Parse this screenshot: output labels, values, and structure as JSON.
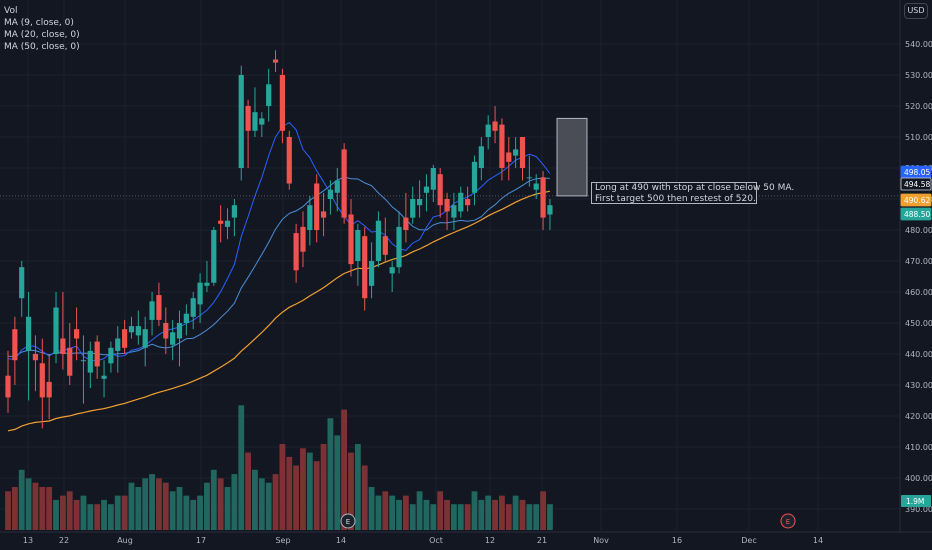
{
  "legend": {
    "vol": "Vol",
    "ma9": "MA (9, close, 0)",
    "ma20": "MA (20, close, 0)",
    "ma50": "MA (50, close, 0)"
  },
  "unit_label": "USD",
  "annotation": {
    "line1": "Long at 490 with stop at close below 50 MA.",
    "line2": "First target 500 then restest of 520."
  },
  "events": [
    {
      "label": "E",
      "date": "Sep 14"
    },
    {
      "label": "E",
      "date": "Dec 7"
    }
  ],
  "colors": {
    "background": "#131722",
    "up": "#26a69a",
    "down": "#ef5350",
    "vol_up": "#22675f",
    "vol_down": "#7c3234",
    "ma9": "#2962ff",
    "ma20": "#4a90d9",
    "ma50": "#f0a030",
    "grid": "#1e222d",
    "text": "#b2b5be"
  },
  "chart_data": {
    "type": "candlestick",
    "y_ticks": [
      390,
      400,
      410,
      420,
      430,
      440,
      450,
      460,
      470,
      480,
      490,
      500,
      510,
      520,
      530,
      540
    ],
    "ylim": [
      385,
      548
    ],
    "x_tick_labels": [
      "13",
      "22",
      "Aug",
      "17",
      "Sep",
      "14",
      "Oct",
      "12",
      "21",
      "Nov",
      "16",
      "Dec",
      "14"
    ],
    "price_tags": [
      {
        "label": "498.05",
        "value": 498.05,
        "color": "#2962ff"
      },
      {
        "label": "494.58",
        "value": 494.58,
        "color": "#131722"
      },
      {
        "label": "490.62",
        "value": 490.62,
        "color": "#f0a030"
      },
      {
        "label": "488.50",
        "value": 488.5,
        "color": "#26a69a"
      }
    ],
    "volume_tag": "1.9M",
    "target_box": {
      "low": 491,
      "high": 516
    },
    "candles": [
      {
        "o": 433,
        "h": 441,
        "l": 421,
        "c": 426,
        "v": 9
      },
      {
        "o": 448,
        "h": 452,
        "l": 430,
        "c": 438,
        "v": 10
      },
      {
        "o": 458,
        "h": 470,
        "l": 452,
        "c": 468,
        "v": 14
      },
      {
        "o": 441,
        "h": 460,
        "l": 425,
        "c": 452,
        "v": 12
      },
      {
        "o": 440,
        "h": 446,
        "l": 428,
        "c": 438,
        "v": 11
      },
      {
        "o": 437,
        "h": 445,
        "l": 416,
        "c": 426,
        "v": 10
      },
      {
        "o": 431,
        "h": 440,
        "l": 419,
        "c": 426,
        "v": 10
      },
      {
        "o": 440,
        "h": 460,
        "l": 437,
        "c": 455,
        "v": 7
      },
      {
        "o": 445,
        "h": 460,
        "l": 435,
        "c": 440,
        "v": 8
      },
      {
        "o": 442,
        "h": 450,
        "l": 430,
        "c": 433,
        "v": 9
      },
      {
        "o": 448,
        "h": 455,
        "l": 438,
        "c": 445,
        "v": 7
      },
      {
        "o": 438,
        "h": 446,
        "l": 424,
        "c": 438,
        "v": 8
      },
      {
        "o": 434,
        "h": 444,
        "l": 429,
        "c": 441,
        "v": 6
      },
      {
        "o": 444,
        "h": 446,
        "l": 432,
        "c": 436,
        "v": 6
      },
      {
        "o": 432,
        "h": 438,
        "l": 426,
        "c": 433,
        "v": 7
      },
      {
        "o": 437,
        "h": 444,
        "l": 434,
        "c": 442,
        "v": 6
      },
      {
        "o": 441,
        "h": 449,
        "l": 434,
        "c": 445,
        "v": 8
      },
      {
        "o": 448,
        "h": 451,
        "l": 440,
        "c": 442,
        "v": 8
      },
      {
        "o": 447,
        "h": 452,
        "l": 445,
        "c": 449,
        "v": 11
      },
      {
        "o": 446,
        "h": 454,
        "l": 443,
        "c": 449,
        "v": 10
      },
      {
        "o": 442,
        "h": 452,
        "l": 436,
        "c": 448,
        "v": 12
      },
      {
        "o": 451,
        "h": 460,
        "l": 446,
        "c": 457,
        "v": 13
      },
      {
        "o": 459,
        "h": 463,
        "l": 449,
        "c": 451,
        "v": 12
      },
      {
        "o": 450,
        "h": 455,
        "l": 440,
        "c": 445,
        "v": 11
      },
      {
        "o": 443,
        "h": 451,
        "l": 438,
        "c": 447,
        "v": 9
      },
      {
        "o": 445,
        "h": 454,
        "l": 436,
        "c": 450,
        "v": 10
      },
      {
        "o": 450,
        "h": 456,
        "l": 446,
        "c": 453,
        "v": 8
      },
      {
        "o": 452,
        "h": 460,
        "l": 448,
        "c": 458,
        "v": 7
      },
      {
        "o": 456,
        "h": 466,
        "l": 450,
        "c": 463,
        "v": 8
      },
      {
        "o": 462,
        "h": 470,
        "l": 460,
        "c": 463,
        "v": 11
      },
      {
        "o": 463,
        "h": 481,
        "l": 462,
        "c": 480,
        "v": 14
      },
      {
        "o": 483,
        "h": 488,
        "l": 476,
        "c": 482,
        "v": 12
      },
      {
        "o": 481,
        "h": 487,
        "l": 477,
        "c": 483,
        "v": 10
      },
      {
        "o": 484,
        "h": 490,
        "l": 478,
        "c": 488,
        "v": 13
      },
      {
        "o": 500,
        "h": 533,
        "l": 496,
        "c": 530,
        "v": 29
      },
      {
        "o": 520,
        "h": 522,
        "l": 500,
        "c": 512,
        "v": 18
      },
      {
        "o": 512,
        "h": 526,
        "l": 510,
        "c": 518,
        "v": 14
      },
      {
        "o": 514,
        "h": 518,
        "l": 510,
        "c": 516,
        "v": 12
      },
      {
        "o": 520,
        "h": 532,
        "l": 515,
        "c": 527,
        "v": 11
      },
      {
        "o": 535,
        "h": 538,
        "l": 531,
        "c": 534,
        "v": 13
      },
      {
        "o": 530,
        "h": 532,
        "l": 508,
        "c": 512,
        "v": 20
      },
      {
        "o": 510,
        "h": 512,
        "l": 493,
        "c": 495,
        "v": 17
      },
      {
        "o": 479,
        "h": 482,
        "l": 463,
        "c": 467,
        "v": 15
      },
      {
        "o": 481,
        "h": 486,
        "l": 468,
        "c": 473,
        "v": 19
      },
      {
        "o": 480,
        "h": 491,
        "l": 475,
        "c": 488,
        "v": 18
      },
      {
        "o": 495,
        "h": 498,
        "l": 476,
        "c": 480,
        "v": 16
      },
      {
        "o": 486,
        "h": 492,
        "l": 478,
        "c": 484,
        "v": 20
      },
      {
        "o": 490,
        "h": 496,
        "l": 485,
        "c": 493,
        "v": 26
      },
      {
        "o": 492,
        "h": 500,
        "l": 486,
        "c": 496,
        "v": 22
      },
      {
        "o": 506,
        "h": 508,
        "l": 482,
        "c": 484,
        "v": 28
      },
      {
        "o": 485,
        "h": 490,
        "l": 465,
        "c": 469,
        "v": 18
      },
      {
        "o": 470,
        "h": 482,
        "l": 462,
        "c": 480,
        "v": 20
      },
      {
        "o": 478,
        "h": 481,
        "l": 454,
        "c": 458,
        "v": 15
      },
      {
        "o": 462,
        "h": 476,
        "l": 458,
        "c": 470,
        "v": 10
      },
      {
        "o": 470,
        "h": 486,
        "l": 468,
        "c": 483,
        "v": 8
      },
      {
        "o": 478,
        "h": 484,
        "l": 470,
        "c": 472,
        "v": 9
      },
      {
        "o": 466,
        "h": 470,
        "l": 460,
        "c": 468,
        "v": 8
      },
      {
        "o": 468,
        "h": 486,
        "l": 466,
        "c": 481,
        "v": 7
      },
      {
        "o": 484,
        "h": 492,
        "l": 476,
        "c": 480,
        "v": 8
      },
      {
        "o": 484,
        "h": 494,
        "l": 482,
        "c": 490,
        "v": 6
      },
      {
        "o": 488,
        "h": 496,
        "l": 484,
        "c": 490,
        "v": 9
      },
      {
        "o": 492,
        "h": 498,
        "l": 486,
        "c": 494,
        "v": 7
      },
      {
        "o": 493,
        "h": 501,
        "l": 489,
        "c": 500,
        "v": 6
      },
      {
        "o": 498,
        "h": 500,
        "l": 484,
        "c": 488,
        "v": 9
      },
      {
        "o": 490,
        "h": 492,
        "l": 480,
        "c": 486,
        "v": 7
      },
      {
        "o": 484,
        "h": 492,
        "l": 480,
        "c": 488,
        "v": 6
      },
      {
        "o": 486,
        "h": 494,
        "l": 484,
        "c": 492,
        "v": 6
      },
      {
        "o": 490,
        "h": 494,
        "l": 486,
        "c": 488,
        "v": 6
      },
      {
        "o": 492,
        "h": 504,
        "l": 488,
        "c": 502,
        "v": 9
      },
      {
        "o": 500,
        "h": 510,
        "l": 496,
        "c": 507,
        "v": 7
      },
      {
        "o": 510,
        "h": 517,
        "l": 506,
        "c": 514,
        "v": 8
      },
      {
        "o": 515,
        "h": 520,
        "l": 508,
        "c": 512,
        "v": 7
      },
      {
        "o": 514,
        "h": 516,
        "l": 496,
        "c": 500,
        "v": 8
      },
      {
        "o": 505,
        "h": 510,
        "l": 496,
        "c": 502,
        "v": 6
      },
      {
        "o": 504,
        "h": 510,
        "l": 500,
        "c": 506,
        "v": 8
      },
      {
        "o": 510,
        "h": 510,
        "l": 496,
        "c": 500,
        "v": 7
      },
      {
        "o": 497,
        "h": 504,
        "l": 494,
        "c": 497,
        "v": 6
      },
      {
        "o": 493,
        "h": 498,
        "l": 490,
        "c": 495,
        "v": 6
      },
      {
        "o": 497,
        "h": 499,
        "l": 480,
        "c": 484,
        "v": 9
      },
      {
        "o": 485,
        "h": 490,
        "l": 480,
        "c": 488,
        "v": 6
      }
    ]
  }
}
